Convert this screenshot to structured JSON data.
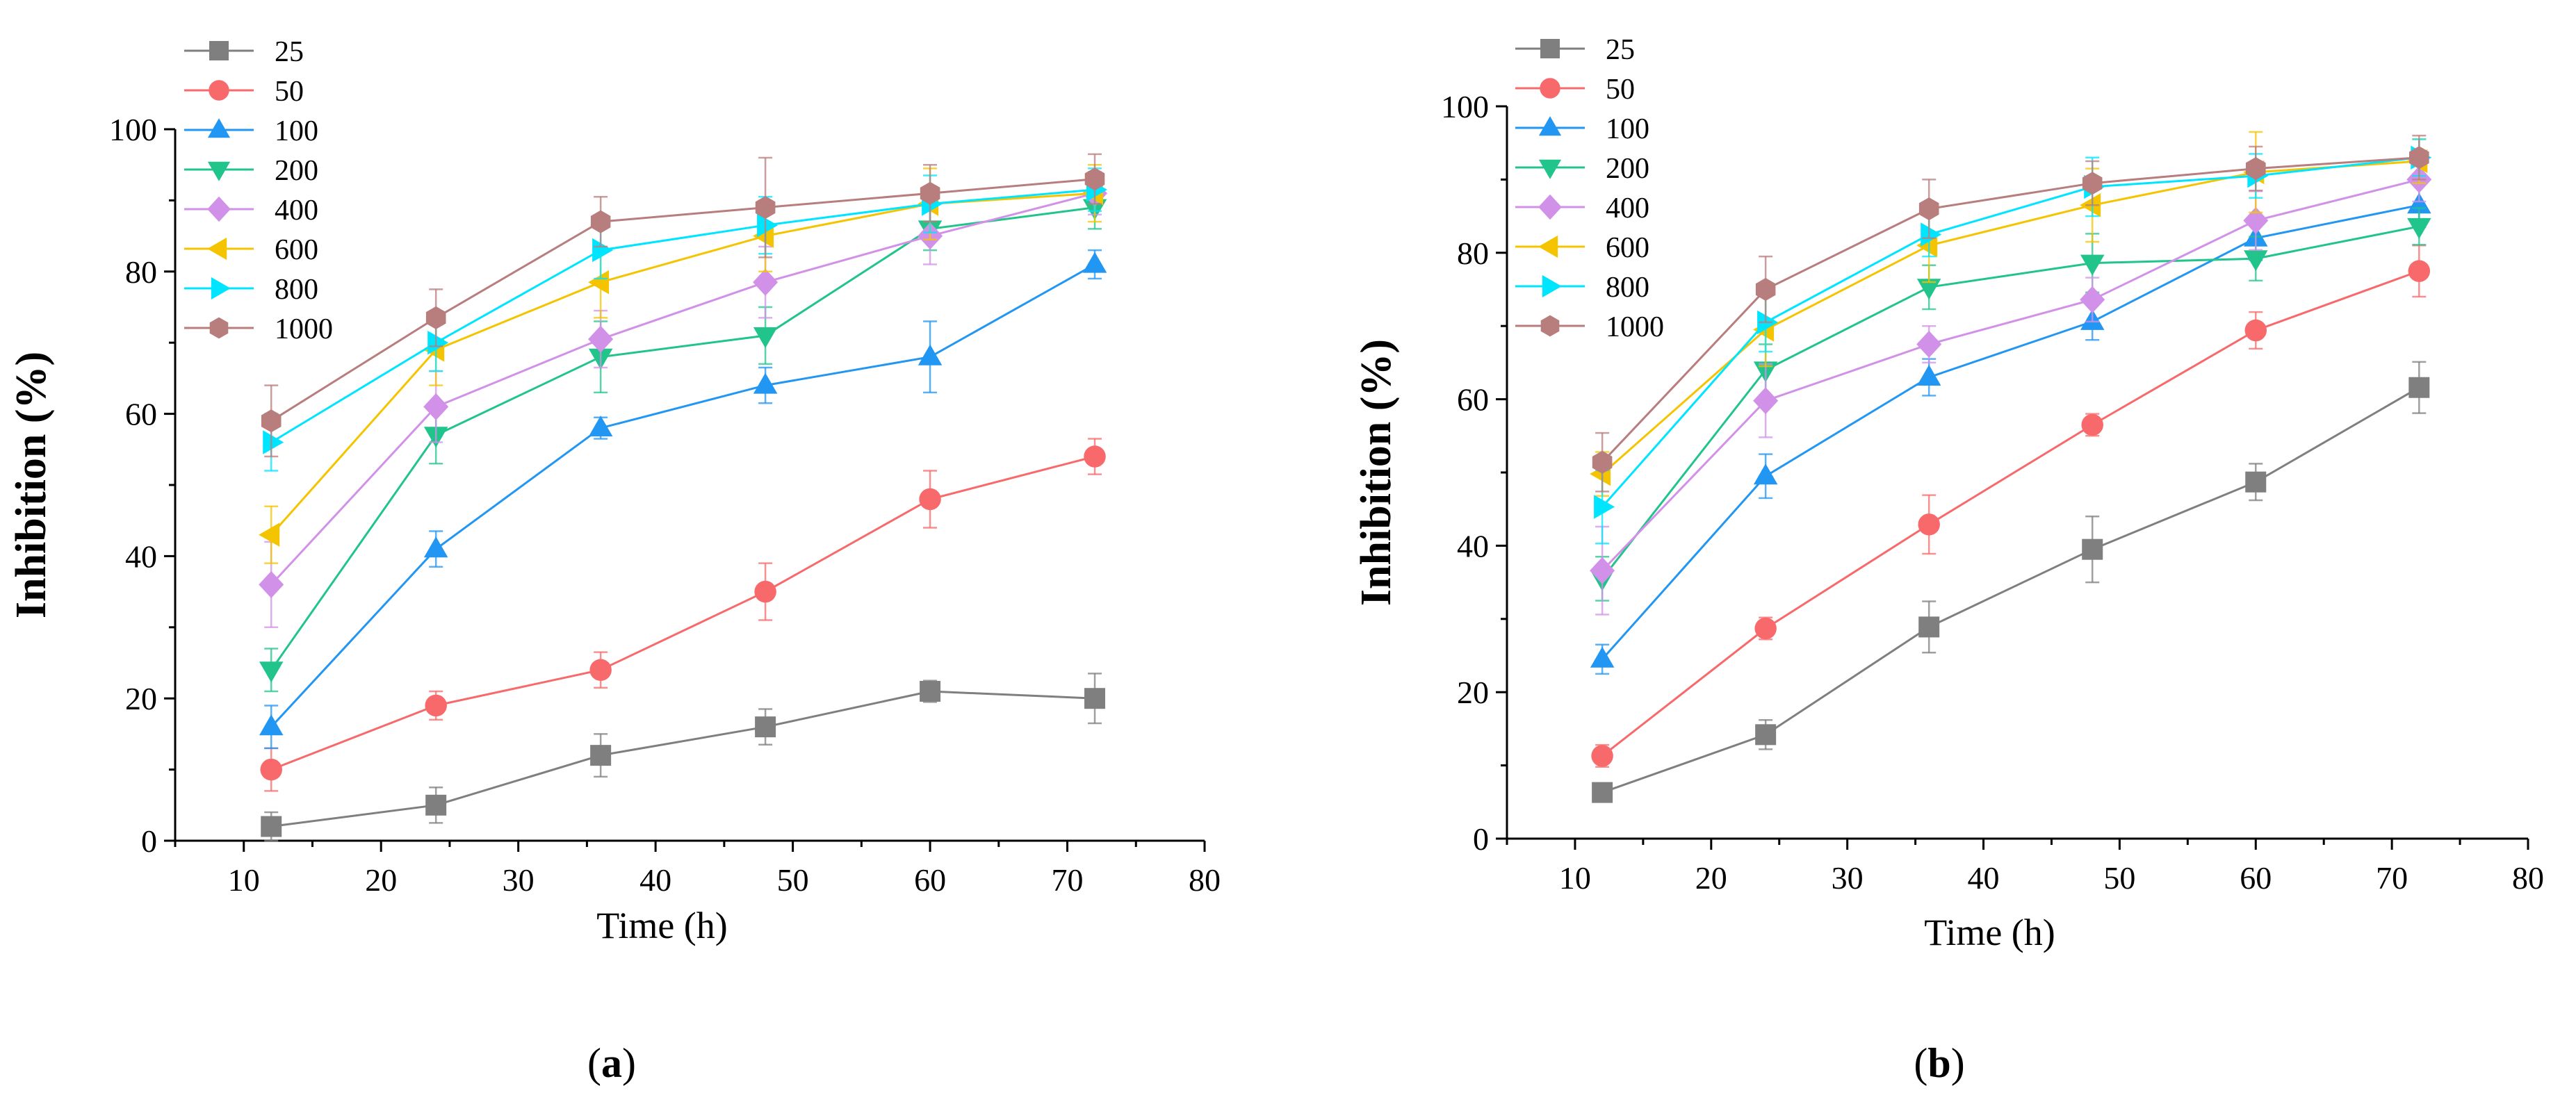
{
  "chart_data": [
    {
      "type": "line",
      "panel_label": "a",
      "xlabel": "Time (h)",
      "ylabel": "Inhibition (%)",
      "xlim": [
        5,
        80
      ],
      "ylim": [
        0,
        100
      ],
      "xticks": [
        10,
        20,
        30,
        40,
        50,
        60,
        70,
        80
      ],
      "yticks": [
        0,
        20,
        40,
        60,
        80,
        100
      ],
      "grid": false,
      "legend_placement": "top-left",
      "x": [
        12,
        24,
        36,
        48,
        60,
        72
      ],
      "series": [
        {
          "name": "25",
          "color": "#7f7f7f",
          "marker": "square",
          "values": [
            2,
            5,
            12,
            16,
            21,
            20
          ],
          "errors": [
            2,
            2.5,
            3,
            2.5,
            1.5,
            3.5
          ]
        },
        {
          "name": "50",
          "color": "#f8696b",
          "marker": "circle",
          "values": [
            10,
            19,
            24,
            35,
            48,
            54
          ],
          "errors": [
            3,
            2,
            2.5,
            4,
            4,
            2.5
          ]
        },
        {
          "name": "100",
          "color": "#2196f3",
          "marker": "triangle-up",
          "values": [
            16,
            41,
            58,
            64,
            68,
            81
          ],
          "errors": [
            3,
            2.5,
            1.5,
            2.5,
            5,
            2
          ]
        },
        {
          "name": "200",
          "color": "#21c48a",
          "marker": "triangle-down",
          "values": [
            24,
            57,
            68,
            71,
            86,
            89
          ],
          "errors": [
            3,
            4,
            5,
            4,
            3,
            3
          ]
        },
        {
          "name": "400",
          "color": "#d291e8",
          "marker": "diamond",
          "values": [
            36,
            61,
            70.5,
            78.5,
            85,
            91
          ],
          "errors": [
            6,
            5,
            4,
            5,
            4,
            3
          ]
        },
        {
          "name": "600",
          "color": "#f5c400",
          "marker": "triangle-left",
          "values": [
            43,
            69,
            78.5,
            85,
            89.5,
            91
          ],
          "errors": [
            4,
            5,
            5,
            5,
            5,
            4
          ]
        },
        {
          "name": "800",
          "color": "#00e5ff",
          "marker": "triangle-right",
          "values": [
            56,
            70,
            83,
            86.5,
            89.5,
            91.5
          ],
          "errors": [
            4,
            4,
            4,
            4,
            4,
            3
          ]
        },
        {
          "name": "1000",
          "color": "#b87d7d",
          "marker": "hexagon",
          "values": [
            59,
            73.5,
            87,
            89,
            91,
            93
          ],
          "errors": [
            5,
            4,
            3.5,
            7,
            4,
            3.5
          ]
        }
      ]
    },
    {
      "type": "line",
      "panel_label": "b",
      "xlabel": "Time (h)",
      "ylabel": "Inhibition (%)",
      "xlim": [
        5,
        80
      ],
      "ylim": [
        0,
        100
      ],
      "xticks": [
        10,
        20,
        30,
        40,
        50,
        60,
        70,
        80
      ],
      "yticks": [
        0,
        20,
        40,
        60,
        80,
        100
      ],
      "grid": false,
      "legend_placement": "top-left",
      "x": [
        12,
        24,
        36,
        48,
        60,
        72
      ],
      "series": [
        {
          "name": "25",
          "color": "#7f7f7f",
          "marker": "square",
          "values": [
            6.3,
            14.2,
            28.9,
            39.5,
            48.7,
            61.6
          ],
          "errors": [
            1,
            2,
            3.5,
            4.5,
            2.5,
            3.5
          ]
        },
        {
          "name": "50",
          "color": "#f8696b",
          "marker": "circle",
          "values": [
            11.3,
            28.7,
            42.9,
            56.5,
            69.4,
            77.5
          ],
          "errors": [
            1.5,
            1.5,
            4,
            1.5,
            2.5,
            3.5
          ]
        },
        {
          "name": "100",
          "color": "#2196f3",
          "marker": "triangle-up",
          "values": [
            24.5,
            49.5,
            63,
            70.6,
            82,
            86.5
          ],
          "errors": [
            2,
            3,
            2.5,
            2.5,
            3,
            3
          ]
        },
        {
          "name": "200",
          "color": "#21c48a",
          "marker": "triangle-down",
          "values": [
            35.5,
            64,
            75.3,
            78.6,
            79.2,
            83.6
          ],
          "errors": [
            3,
            3.5,
            3,
            4,
            3,
            2.5
          ]
        },
        {
          "name": "400",
          "color": "#d291e8",
          "marker": "diamond",
          "values": [
            36.6,
            59.8,
            67.5,
            73.6,
            84.4,
            90
          ],
          "errors": [
            6,
            5,
            2.5,
            3,
            4,
            3
          ]
        },
        {
          "name": "600",
          "color": "#f5c400",
          "marker": "triangle-left",
          "values": [
            49.8,
            69.5,
            81,
            86.5,
            91,
            92.5
          ],
          "errors": [
            3,
            5,
            5,
            5,
            5.5,
            3
          ]
        },
        {
          "name": "800",
          "color": "#00e5ff",
          "marker": "triangle-right",
          "values": [
            45.3,
            70.5,
            82.5,
            89,
            90.5,
            93
          ],
          "errors": [
            5,
            4,
            3,
            4,
            3,
            2.5
          ]
        },
        {
          "name": "1000",
          "color": "#b87d7d",
          "marker": "hexagon",
          "values": [
            51.4,
            75,
            86,
            89.5,
            91.5,
            93
          ],
          "errors": [
            4,
            4.5,
            4,
            3,
            3,
            3
          ]
        }
      ]
    }
  ]
}
